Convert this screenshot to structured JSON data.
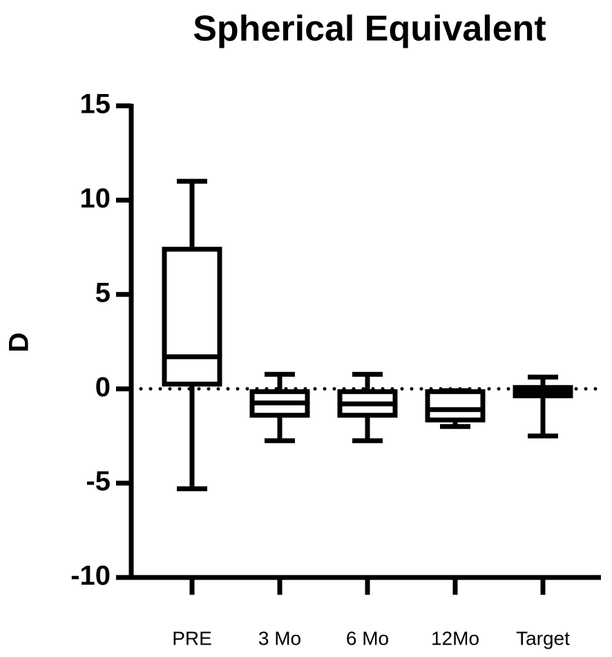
{
  "chart_data": {
    "type": "box",
    "title": "Spherical Equivalent",
    "y_label": "D",
    "categories": [
      "PRE",
      "3 Mo",
      "6 Mo",
      "12Mo",
      "Target"
    ],
    "boxes": [
      {
        "min": -5.3,
        "q1": 0.25,
        "median": 1.7,
        "q3": 7.4,
        "max": 11.0
      },
      {
        "min": -2.75,
        "q1": -1.4,
        "median": -0.75,
        "q3": -0.15,
        "max": 0.77
      },
      {
        "min": -2.75,
        "q1": -1.4,
        "median": -0.8,
        "q3": -0.15,
        "max": 0.77
      },
      {
        "min": -2.0,
        "q1": -1.65,
        "median": -1.1,
        "q3": -0.15,
        "max": -0.1
      },
      {
        "min": -2.5,
        "q1": -0.37,
        "median": -0.15,
        "q3": 0.07,
        "max": 0.62
      }
    ],
    "color": "#000000",
    "reference_line": 0,
    "ylim": [
      -10,
      15
    ],
    "yticks": [
      -10,
      -5,
      0,
      5,
      10,
      15
    ]
  }
}
